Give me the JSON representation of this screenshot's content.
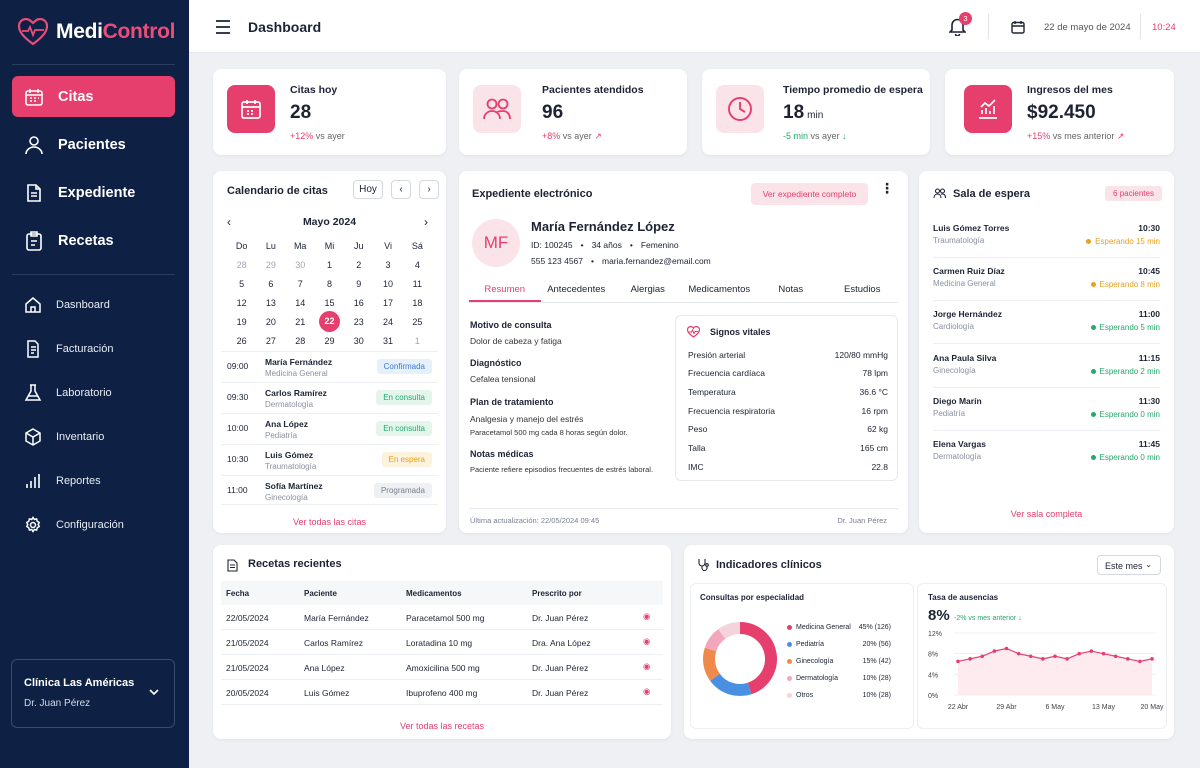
{
  "app": {
    "brand_a": "Medi",
    "brand_b": "Control"
  },
  "sidebar": {
    "main": [
      {
        "label": "Citas",
        "icon": "calendar-icon"
      },
      {
        "label": "Pacientes",
        "icon": "user-icon"
      },
      {
        "label": "Expediente",
        "icon": "document-icon"
      },
      {
        "label": "Recetas",
        "icon": "prescription-icon"
      }
    ],
    "secondary": [
      {
        "label": "Dasnboard",
        "icon": "home-icon"
      },
      {
        "label": "Facturación",
        "icon": "invoice-icon"
      },
      {
        "label": "Laboratorio",
        "icon": "flask-icon"
      },
      {
        "label": "Inventario",
        "icon": "box-icon"
      },
      {
        "label": "Reportes",
        "icon": "chart-icon"
      },
      {
        "label": "Configuración",
        "icon": "gear-icon"
      }
    ],
    "clinic": {
      "name": "Clínica Las Américas",
      "doctor": "Dr. Juan Pérez"
    }
  },
  "header": {
    "title": "Dashboard",
    "notifications": "3",
    "date": "22 de mayo de 2024",
    "time": "10:24"
  },
  "stats": [
    {
      "label": "Citas hoy",
      "value": "28",
      "unit": "",
      "change": "+12%",
      "suffix": "vs ayer"
    },
    {
      "label": "Pacientes atendidos",
      "value": "96",
      "unit": "",
      "change": "+8%",
      "suffix": "vs ayer"
    },
    {
      "label": "Tiempo promedio de espera",
      "value": "18",
      "unit": "min",
      "change": "-5 min",
      "suffix": "vs ayer"
    },
    {
      "label": "Ingresos del mes",
      "value": "$92.450",
      "unit": "",
      "change": "+15%",
      "suffix": "vs mes anterior"
    }
  ],
  "calendar": {
    "title": "Calendario de citas",
    "today_btn": "Hoy",
    "month": "Mayo 2024",
    "weekdays": [
      "Do",
      "Lu",
      "Ma",
      "Mi",
      "Ju",
      "Vi",
      "Sá"
    ],
    "weeks": [
      [
        "28",
        "29",
        "30",
        "1",
        "2",
        "3",
        "4"
      ],
      [
        "5",
        "6",
        "7",
        "8",
        "9",
        "10",
        "11"
      ],
      [
        "12",
        "13",
        "14",
        "15",
        "16",
        "17",
        "18"
      ],
      [
        "19",
        "20",
        "21",
        "22",
        "23",
        "24",
        "25"
      ],
      [
        "26",
        "27",
        "28",
        "29",
        "30",
        "31",
        "1"
      ]
    ],
    "appointments": [
      {
        "time": "09:00",
        "name": "María Fernández",
        "spec": "Medicina General",
        "status": "Confirmada"
      },
      {
        "time": "09:30",
        "name": "Carlos Ramírez",
        "spec": "Dermatología",
        "status": "En consulta"
      },
      {
        "time": "10:00",
        "name": "Ana López",
        "spec": "Pediatría",
        "status": "En consulta"
      },
      {
        "time": "10:30",
        "name": "Luis Gómez",
        "spec": "Traumatología",
        "status": "En espera"
      },
      {
        "time": "11:00",
        "name": "Sofía Martínez",
        "spec": "Ginecología",
        "status": "Programada"
      }
    ],
    "view_all": "Ver todas las citas"
  },
  "record": {
    "title": "Expediente electrónico",
    "view_full": "Ver expediente completo",
    "initials": "MF",
    "name": "María Fernández López",
    "id": "ID: 100245",
    "age": "34 años",
    "sex": "Femenino",
    "phone": "555 123 4567",
    "email": "maria.fernandez@email.com",
    "tabs": [
      "Resumen",
      "Antecedentes",
      "Alergias",
      "Medicamentos",
      "Notas",
      "Estudios"
    ],
    "reason_h": "Motivo de consulta",
    "reason": "Dolor de cabeza y fatiga",
    "diag_h": "Diagnóstico",
    "diag": "Cefalea tensional",
    "plan_h": "Plan de tratamiento",
    "plan1": "Analgesia y manejo del estrés",
    "plan2": "Paracetamol 500 mg cada 8 horas según dolor.",
    "notes_h": "Notas médicas",
    "notes": "Paciente refiere episodios frecuentes de estrés laboral.",
    "vitals_title": "Signos vitales",
    "vitals": [
      {
        "k": "Presión arterial",
        "v": "120/80 mmHg"
      },
      {
        "k": "Frecuencia cardíaca",
        "v": "78 lpm"
      },
      {
        "k": "Temperatura",
        "v": "36.6 °C"
      },
      {
        "k": "Frecuencia respiratoria",
        "v": "16 rpm"
      },
      {
        "k": "Peso",
        "v": "62 kg"
      },
      {
        "k": "Talla",
        "v": "165 cm"
      },
      {
        "k": "IMC",
        "v": "22.8"
      }
    ],
    "updated": "Última actualización: 22/05/2024 09:45",
    "doctor": "Dr. Juan Pérez"
  },
  "waiting": {
    "title": "Sala de espera",
    "count": "6 pacientes",
    "patients": [
      {
        "name": "Luis Gómez Torres",
        "spec": "Traumatología",
        "time": "10:30",
        "wait": "Esperando 15 min",
        "color": "#f0a020"
      },
      {
        "name": "Carmen Ruiz Díaz",
        "spec": "Medicina General",
        "time": "10:45",
        "wait": "Esperando 8 min",
        "color": "#f0a020"
      },
      {
        "name": "Jorge Hernández",
        "spec": "Cardiología",
        "time": "11:00",
        "wait": "Esperando 5 min",
        "color": "#26a96c"
      },
      {
        "name": "Ana Paula Silva",
        "spec": "Ginecología",
        "time": "11:15",
        "wait": "Esperando 2 min",
        "color": "#26a96c"
      },
      {
        "name": "Diego Marín",
        "spec": "Pediatría",
        "time": "11:30",
        "wait": "Esperando 0 min",
        "color": "#26a96c"
      },
      {
        "name": "Elena Vargas",
        "spec": "Dermatología",
        "time": "11:45",
        "wait": "Esperando 0 min",
        "color": "#26a96c"
      }
    ],
    "view_all": "Ver sala completa"
  },
  "prescriptions": {
    "title": "Recetas recientes",
    "headers": [
      "Fecha",
      "Paciente",
      "Medicamentos",
      "Prescrito por"
    ],
    "rows": [
      {
        "date": "22/05/2024",
        "patient": "María Fernández",
        "med": "Paracetamol 500 mg",
        "by": "Dr. Juan Pérez"
      },
      {
        "date": "21/05/2024",
        "patient": "Carlos Ramírez",
        "med": "Loratadina 10 mg",
        "by": "Dra. Ana López"
      },
      {
        "date": "21/05/2024",
        "patient": "Ana López",
        "med": "Amoxicilina 500 mg",
        "by": "Dr. Juan Pérez"
      },
      {
        "date": "20/05/2024",
        "patient": "Luis Gómez",
        "med": "Ibuprofeno 400 mg",
        "by": "Dr. Juan Pérez"
      }
    ],
    "view_all": "Ver todas las recetas"
  },
  "indicators": {
    "title": "Indicadores clínicos",
    "range": "Este mes",
    "donut_title": "Consultas por especialidad",
    "absence_title": "Tasa de ausencias",
    "absence_value": "8%",
    "absence_change": "-2% vs mes anterior"
  },
  "chart_data": [
    {
      "type": "pie",
      "title": "Consultas por especialidad",
      "categories": [
        "Medicina General",
        "Pediatría",
        "Ginecología",
        "Dermatología",
        "Otros"
      ],
      "values": [
        126,
        56,
        42,
        28,
        28
      ],
      "percent_labels": [
        "45% (126)",
        "20% (56)",
        "15% (42)",
        "10% (28)",
        "10% (28)"
      ],
      "colors": [
        "#e63e6d",
        "#4a90e2",
        "#f08a4b",
        "#f3a7bd",
        "#f5d3dc"
      ]
    },
    {
      "type": "area",
      "title": "Tasa de ausencias",
      "x_ticks": [
        "22 Abr",
        "29 Abr",
        "6 May",
        "13 May",
        "20 May"
      ],
      "y_ticks": [
        "12%",
        "8%",
        "4%",
        "0%"
      ],
      "ylim": [
        0,
        12
      ],
      "values": [
        6.5,
        7,
        7.5,
        8.5,
        9,
        8,
        7.5,
        7,
        7.5,
        7,
        8,
        8.5,
        8,
        7.5,
        7,
        6.5,
        7
      ],
      "color": "#e63e6d"
    }
  ]
}
